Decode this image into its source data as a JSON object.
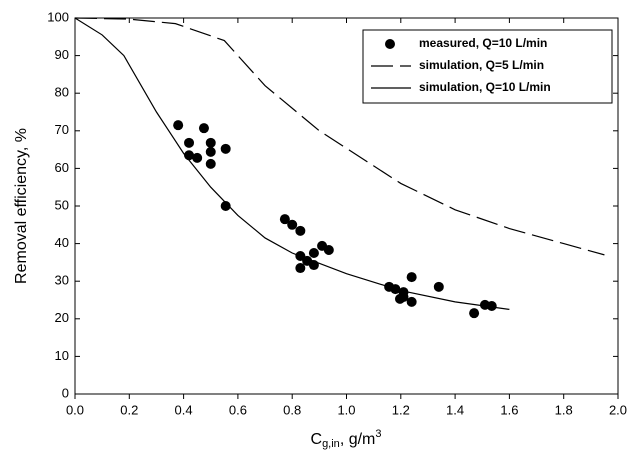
{
  "chart_data": {
    "type": "scatter",
    "ylabel": "Removal efficiency, %",
    "xlabel": {
      "base": "C",
      "sub": "g,in",
      "text": ", g/m",
      "sup": "3"
    },
    "xlim": [
      0,
      2
    ],
    "ylim": [
      0,
      100
    ],
    "xticks": [
      {
        "value": 0,
        "label": "0.0"
      },
      {
        "value": 0.2,
        "label": "0.2"
      },
      {
        "value": 0.4,
        "label": "0.4"
      },
      {
        "value": 0.6,
        "label": "0.6"
      },
      {
        "value": 0.8,
        "label": "0.8"
      },
      {
        "value": 1,
        "label": "1.0"
      },
      {
        "value": 1.2,
        "label": "1.2"
      },
      {
        "value": 1.4,
        "label": "1.4"
      },
      {
        "value": 1.6,
        "label": "1.6"
      },
      {
        "value": 1.8,
        "label": "1.8"
      },
      {
        "value": 2,
        "label": "2.0"
      }
    ],
    "yticks": [
      0,
      10,
      20,
      30,
      40,
      50,
      60,
      70,
      80,
      90,
      100
    ],
    "legend": "upper right",
    "series": [
      {
        "name": "measured, Q=10 L/min",
        "color": "#000000",
        "style": "marker",
        "x": [
          0.38,
          0.42,
          0.42,
          0.45,
          0.475,
          0.5,
          0.5,
          0.5,
          0.555,
          0.555,
          0.773,
          0.8,
          0.83,
          0.83,
          0.83,
          0.855,
          0.88,
          0.88,
          0.91,
          0.935,
          1.157,
          1.18,
          1.197,
          1.21,
          1.21,
          1.24,
          1.24,
          1.34,
          1.47,
          1.51,
          1.535
        ],
        "values": [
          71.5,
          66.8,
          63.5,
          62.8,
          70.7,
          66.8,
          64.4,
          61.2,
          65.2,
          50,
          46.5,
          45,
          43.4,
          36.7,
          33.5,
          35.4,
          37.5,
          34.3,
          39.4,
          38.3,
          28.5,
          27.9,
          25.3,
          25.8,
          27.1,
          24.5,
          31.1,
          28.5,
          21.5,
          23.7,
          23.4
        ]
      },
      {
        "name": "simulation, Q=5 L/min",
        "color": "#000000",
        "style": "dashed",
        "x": [
          0,
          0.2,
          0.37,
          0.55,
          0.7,
          0.9,
          1.2,
          1.4,
          1.6,
          1.8,
          1.95
        ],
        "values": [
          100,
          99.7,
          98.5,
          94,
          82,
          70,
          56,
          49,
          44,
          40,
          37
        ]
      },
      {
        "name": "simulation, Q=10 L/min",
        "color": "#000000",
        "style": "solid",
        "x": [
          0,
          0.1,
          0.18,
          0.3,
          0.4,
          0.5,
          0.6,
          0.7,
          0.8,
          1,
          1.2,
          1.4,
          1.6
        ],
        "values": [
          100,
          95.5,
          90,
          75,
          64,
          55,
          47.5,
          41.5,
          37.5,
          32,
          27.5,
          24.5,
          22.5
        ]
      }
    ]
  }
}
